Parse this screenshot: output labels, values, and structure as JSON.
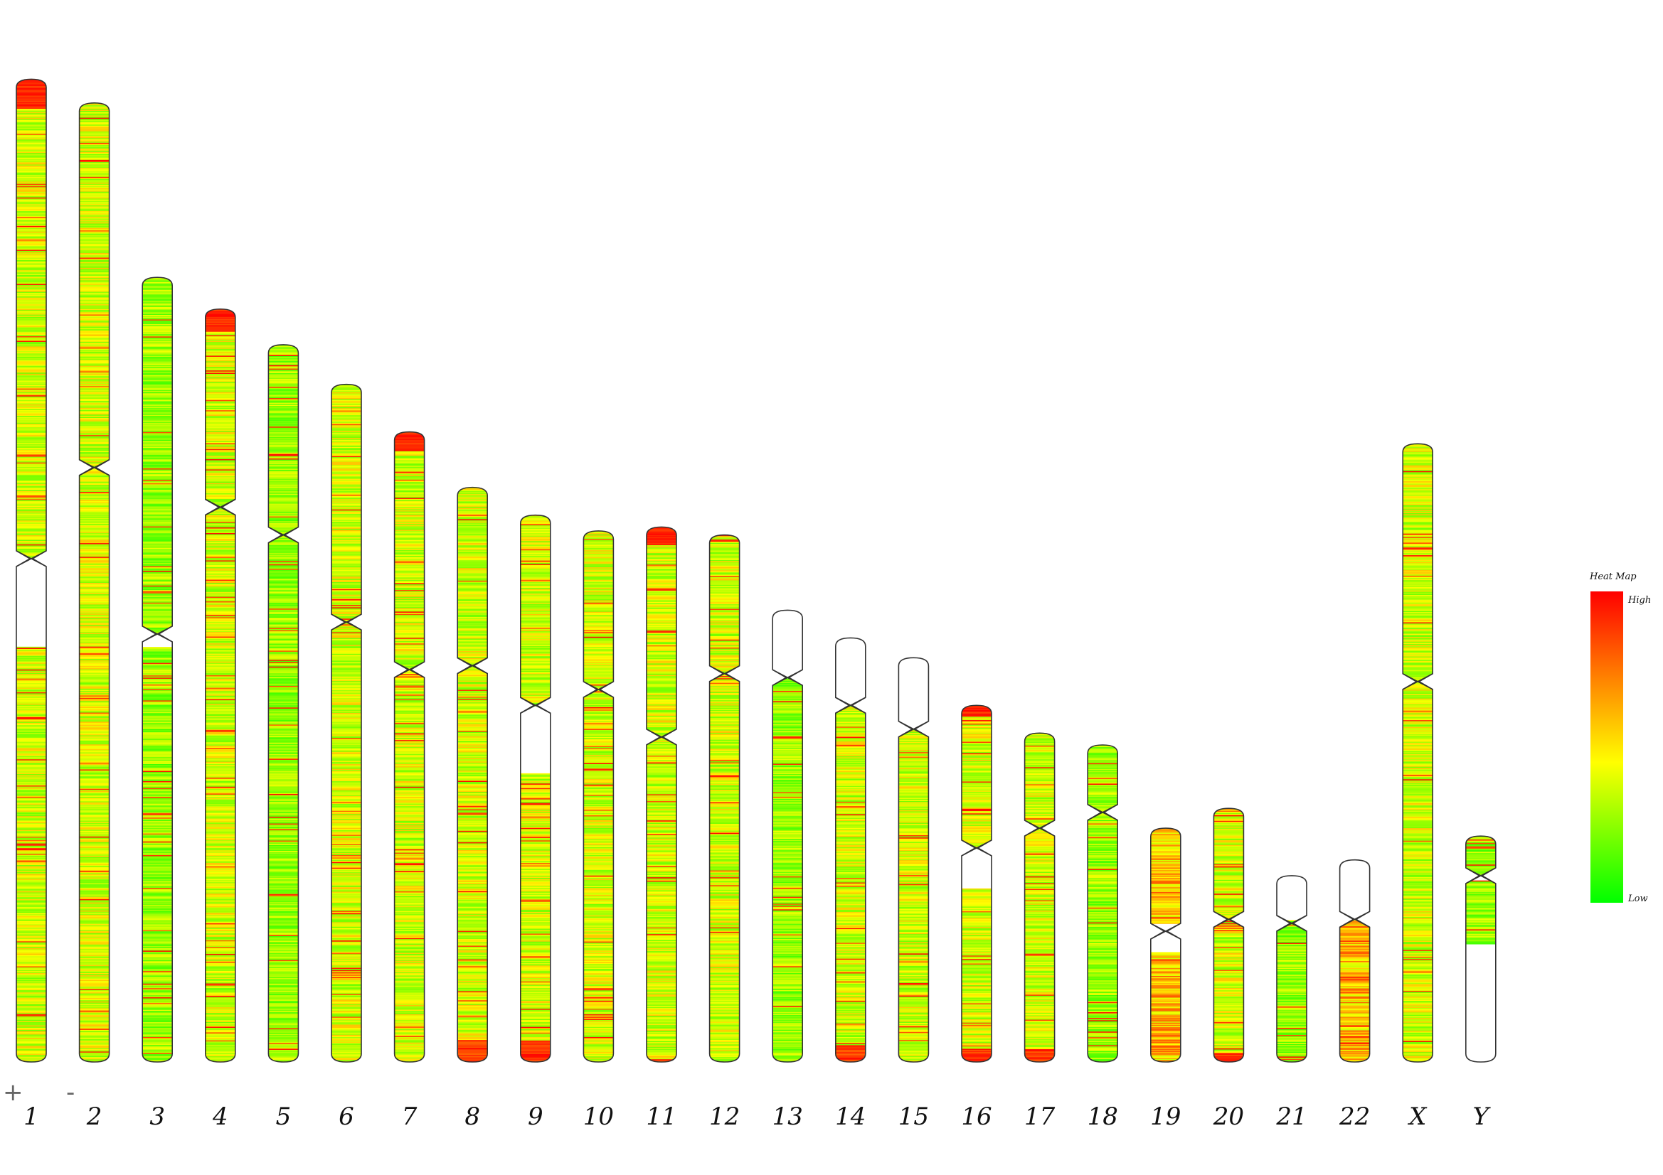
{
  "controls": {
    "zoom_in_label": "+",
    "zoom_out_label": "-"
  },
  "legend": {
    "title": "Heat Map",
    "high_label": "High",
    "low_label": "Low",
    "colors": {
      "high": "#ff0000",
      "mid_high": "#ff8c00",
      "mid": "#ffff00",
      "low": "#00ff00"
    }
  },
  "chromosomes": [
    {
      "label": "1",
      "length": 248,
      "centromere": 121,
      "gaps": [
        [
          121,
          143
        ]
      ],
      "profile": "mixed-hot-top"
    },
    {
      "label": "2",
      "length": 242,
      "centromere": 92,
      "gaps": [],
      "profile": "mixed"
    },
    {
      "label": "3",
      "length": 198,
      "centromere": 90,
      "gaps": [
        [
          90,
          93
        ]
      ],
      "profile": "green"
    },
    {
      "label": "4",
      "length": 190,
      "centromere": 50,
      "gaps": [],
      "profile": "green-hot-top"
    },
    {
      "label": "5",
      "length": 181,
      "centromere": 48,
      "gaps": [],
      "profile": "green"
    },
    {
      "label": "6",
      "length": 171,
      "centromere": 60,
      "gaps": [],
      "profile": "mixed"
    },
    {
      "label": "7",
      "length": 159,
      "centromere": 60,
      "gaps": [],
      "profile": "mixed-hot-top"
    },
    {
      "label": "8",
      "length": 145,
      "centromere": 45,
      "gaps": [],
      "profile": "mixed-hot-bottom"
    },
    {
      "label": "9",
      "length": 138,
      "centromere": 48,
      "gaps": [
        [
          48,
          65
        ]
      ],
      "profile": "mixed-hot-bottom"
    },
    {
      "label": "10",
      "length": 134,
      "centromere": 40,
      "gaps": [],
      "profile": "mixed"
    },
    {
      "label": "11",
      "length": 135,
      "centromere": 53,
      "gaps": [],
      "profile": "mixed-hot-top"
    },
    {
      "label": "12",
      "length": 133,
      "centromere": 35,
      "gaps": [],
      "profile": "mixed"
    },
    {
      "label": "13",
      "length": 114,
      "centromere": 17,
      "gaps": [
        [
          0,
          17
        ]
      ],
      "profile": "green"
    },
    {
      "label": "14",
      "length": 107,
      "centromere": 17,
      "gaps": [
        [
          0,
          17
        ]
      ],
      "profile": "mixed-hot-bottom"
    },
    {
      "label": "15",
      "length": 102,
      "centromere": 18,
      "gaps": [
        [
          0,
          18
        ]
      ],
      "profile": "mixed"
    },
    {
      "label": "16",
      "length": 90,
      "centromere": 36,
      "gaps": [
        [
          36,
          46
        ]
      ],
      "profile": "mixed-hot-both"
    },
    {
      "label": "17",
      "length": 83,
      "centromere": 24,
      "gaps": [],
      "profile": "mixed-hot-bottom"
    },
    {
      "label": "18",
      "length": 80,
      "centromere": 17,
      "gaps": [],
      "profile": "green"
    },
    {
      "label": "19",
      "length": 59,
      "centromere": 26,
      "gaps": [
        [
          24,
          31
        ]
      ],
      "profile": "hot"
    },
    {
      "label": "20",
      "length": 64,
      "centromere": 28,
      "gaps": [],
      "profile": "mixed-hot-bottom"
    },
    {
      "label": "21",
      "length": 47,
      "centromere": 12,
      "gaps": [
        [
          0,
          11
        ]
      ],
      "profile": "green"
    },
    {
      "label": "22",
      "length": 51,
      "centromere": 15,
      "gaps": [
        [
          0,
          15
        ]
      ],
      "profile": "hot"
    },
    {
      "label": "X",
      "length": 156,
      "centromere": 60,
      "gaps": [],
      "profile": "mixed"
    },
    {
      "label": "Y",
      "length": 57,
      "centromere": 10,
      "gaps": [
        [
          10,
          11
        ],
        [
          27,
          57
        ]
      ],
      "profile": "green"
    }
  ]
}
